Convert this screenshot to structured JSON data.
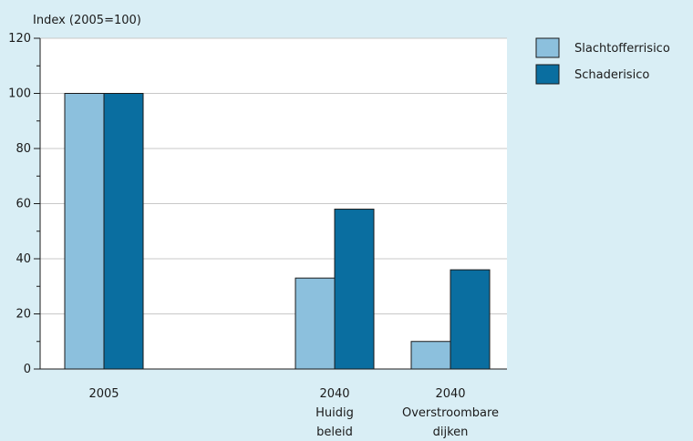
{
  "colors": {
    "background": "#d9eef5",
    "plot_area": "#ffffff",
    "gridline": "#c8c8c8",
    "series_1": "#8cc0dd",
    "series_2": "#0a6ea0",
    "bar_edge": "#1a1a1a"
  },
  "chart_data": {
    "type": "bar",
    "title": "",
    "xlabel": "",
    "ylabel": "Index (2005=100)",
    "ylim": [
      0,
      120
    ],
    "yticks": [
      0,
      20,
      40,
      60,
      80,
      100,
      120
    ],
    "grid": true,
    "legend_position": "top-right-outside",
    "categories": [
      {
        "lines": [
          "2005"
        ],
        "gap_before": false
      },
      {
        "lines": [
          "2040",
          "Huidig",
          "beleid"
        ],
        "gap_before": true
      },
      {
        "lines": [
          "2040",
          "Overstroombare",
          "dijken"
        ],
        "gap_before": false
      }
    ],
    "series": [
      {
        "name": "Slachtofferrisico",
        "color": "#8cc0dd",
        "values": [
          100,
          33,
          10
        ]
      },
      {
        "name": "Schaderisico",
        "color": "#0a6ea0",
        "values": [
          100,
          58,
          36
        ]
      }
    ]
  }
}
